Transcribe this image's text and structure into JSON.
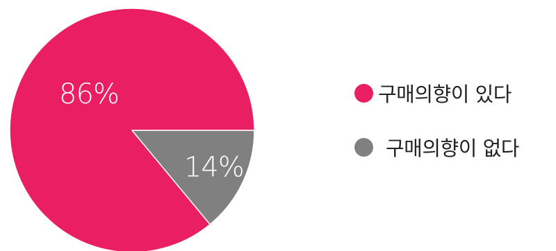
{
  "chart_data": {
    "type": "pie",
    "slices": [
      {
        "label": "구매의향이 있다",
        "value": 86,
        "display": "86%",
        "color": "#E91E63"
      },
      {
        "label": "구매의향이 없다",
        "value": 14,
        "display": "14%",
        "color": "#808080"
      }
    ],
    "legend": "right"
  }
}
